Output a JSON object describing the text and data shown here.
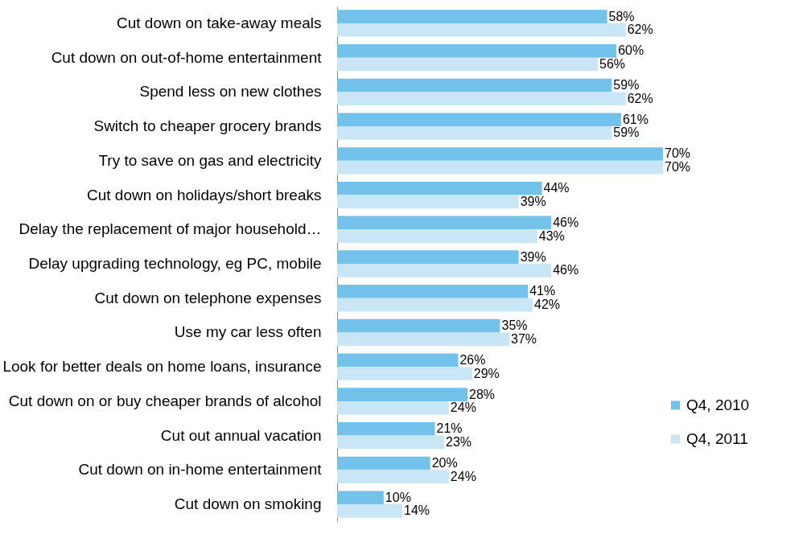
{
  "chart_data": {
    "type": "bar",
    "orientation": "horizontal",
    "legend": "bottom right",
    "grid": false,
    "categories": [
      "Cut down on take-away meals",
      "Cut down on out-of-home entertainment",
      "Spend less on new clothes",
      "Switch to cheaper grocery brands",
      "Try to save on gas and electricity",
      "Cut down on holidays/short breaks",
      "Delay the replacement of major household…",
      "Delay upgrading technology, eg PC, mobile",
      "Cut down on telephone expenses",
      "Use my car less often",
      "Look for better deals on home loans, insurance",
      "Cut down on or buy cheaper brands of alcohol",
      "Cut out annual vacation",
      "Cut down on in-home entertainment",
      "Cut down on smoking"
    ],
    "series": [
      {
        "name": "Q4, 2010",
        "color": "#72c2eb",
        "values": [
          58,
          60,
          59,
          61,
          70,
          44,
          46,
          39,
          41,
          35,
          26,
          28,
          21,
          20,
          10
        ],
        "value_labels": [
          "58%",
          "60%",
          "59%",
          "61%",
          "70%",
          "44%",
          "46%",
          "39%",
          "41%",
          "35%",
          "26%",
          "28%",
          "21%",
          "20%",
          "10%"
        ]
      },
      {
        "name": "Q4, 2011",
        "color": "#c8e6f6",
        "values": [
          62,
          56,
          62,
          59,
          70,
          39,
          43,
          46,
          42,
          37,
          29,
          24,
          23,
          24,
          14
        ],
        "value_labels": [
          "62%",
          "56%",
          "62%",
          "59%",
          "70%",
          "39%",
          "43%",
          "46%",
          "42%",
          "37%",
          "29%",
          "24%",
          "23%",
          "24%",
          "14%"
        ]
      }
    ]
  }
}
